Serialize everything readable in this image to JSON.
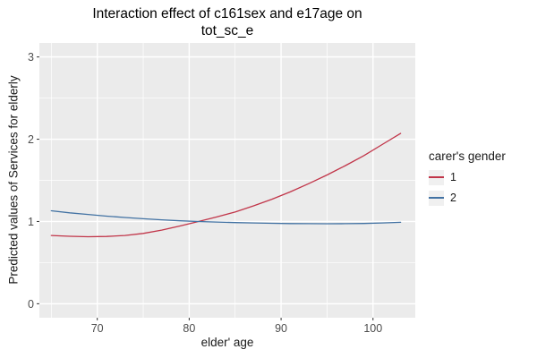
{
  "figure": {
    "background": "#ffffff",
    "panel_background": "#ebebeb",
    "gridline_color": "#ffffff",
    "tick_color": "#333333",
    "tick_label_color": "#4d4d4d",
    "title_color": "#000000"
  },
  "title": {
    "line1": "Interaction effect of c161sex and e17age on",
    "line2": "tot_sc_e"
  },
  "chart_data": {
    "type": "line",
    "title": "Interaction effect of c161sex and e17age on tot_sc_e",
    "xlabel": "elder' age",
    "ylabel": "Predicted values of Services for elderly",
    "legend": {
      "title": "carer's gender",
      "position": "right",
      "key_fill": "#f0f0f0"
    },
    "xlim": [
      63.7,
      104.6
    ],
    "ylim": [
      -0.17,
      3.17
    ],
    "x_major_ticks": [
      70,
      80,
      90,
      100
    ],
    "x_minor_ticks": [
      65,
      75,
      85,
      95
    ],
    "y_major_ticks": [
      0,
      1,
      2,
      3
    ],
    "y_minor_ticks": [
      0.5,
      1.5,
      2.5
    ],
    "grid": "major+minor",
    "x": [
      65,
      67,
      69,
      71,
      73,
      75,
      77,
      79,
      81,
      83,
      85,
      87,
      89,
      91,
      93,
      95,
      97,
      99,
      101,
      103
    ],
    "series": [
      {
        "name": "1",
        "color": "#c13549",
        "values": [
          0.83,
          0.82,
          0.815,
          0.818,
          0.83,
          0.855,
          0.895,
          0.945,
          1.0,
          1.055,
          1.115,
          1.19,
          1.27,
          1.36,
          1.46,
          1.565,
          1.68,
          1.8,
          1.935,
          2.07
        ]
      },
      {
        "name": "2",
        "color": "#4272a3",
        "values": [
          1.13,
          1.105,
          1.085,
          1.065,
          1.048,
          1.033,
          1.02,
          1.008,
          1.0,
          0.993,
          0.987,
          0.982,
          0.978,
          0.975,
          0.973,
          0.972,
          0.973,
          0.976,
          0.982,
          0.99
        ]
      }
    ]
  }
}
